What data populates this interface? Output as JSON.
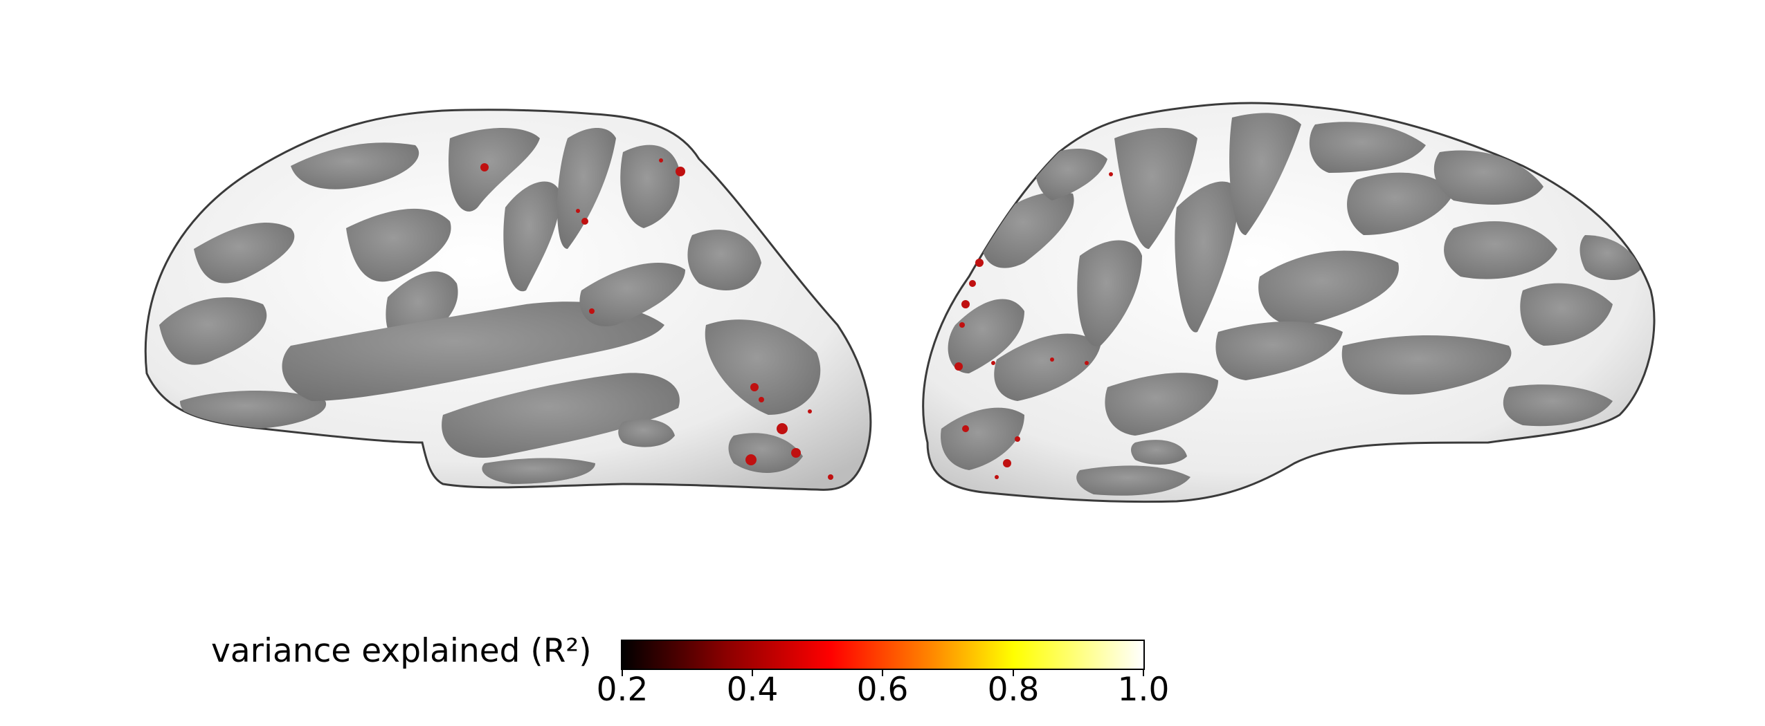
{
  "figure": {
    "description_type": "inflated cortical surface maps",
    "colorbar": {
      "label": "variance explained (R²)",
      "ticks": [
        "0.2",
        "0.4",
        "0.6",
        "0.8",
        "1.0"
      ],
      "range": [
        0.2,
        1.0
      ],
      "colormap_stops": [
        "#000000",
        "#8b0000",
        "#ff0000",
        "#ff8c00",
        "#ffff00",
        "#ffffff"
      ]
    },
    "colors": {
      "gyri": "#ececec",
      "sulci": "#8c8c8c",
      "highlight": "#c01010"
    }
  }
}
